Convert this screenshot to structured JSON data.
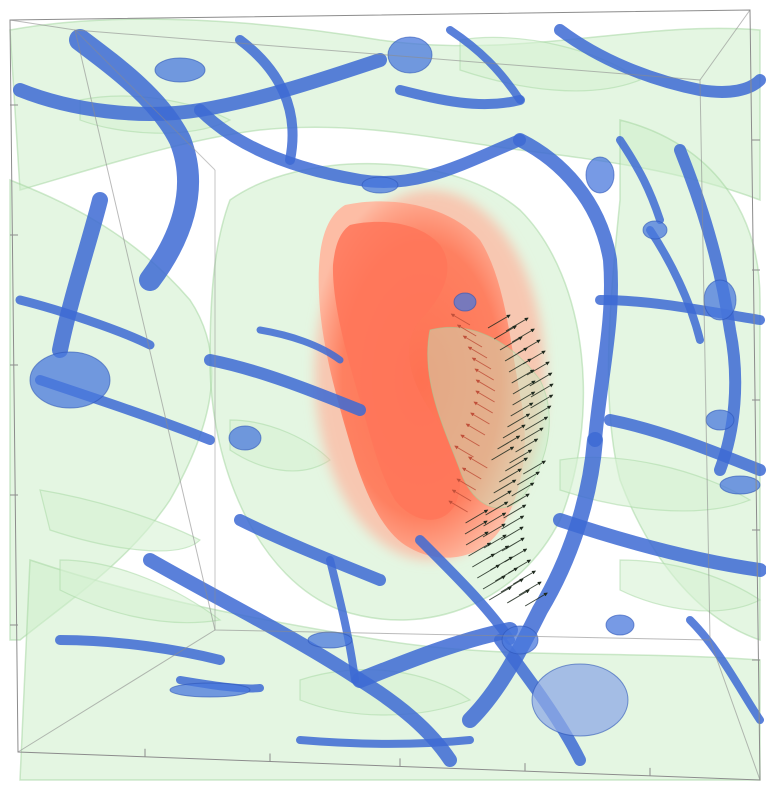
{
  "scene": {
    "background": "#ffffff",
    "colors": {
      "void_outer": "#ff6a4d",
      "void_inner": "#ff8a6a",
      "sheet_fill": "#c6ebc4",
      "sheet_stroke": "#a8d8a6",
      "filament": "#3f6fd6",
      "filament_dark": "#2a4fb8",
      "box_edge": "#8c8c8c",
      "arrow_dark": "#1f2a1f",
      "arrow_red": "#c0503a"
    },
    "legend": []
  }
}
